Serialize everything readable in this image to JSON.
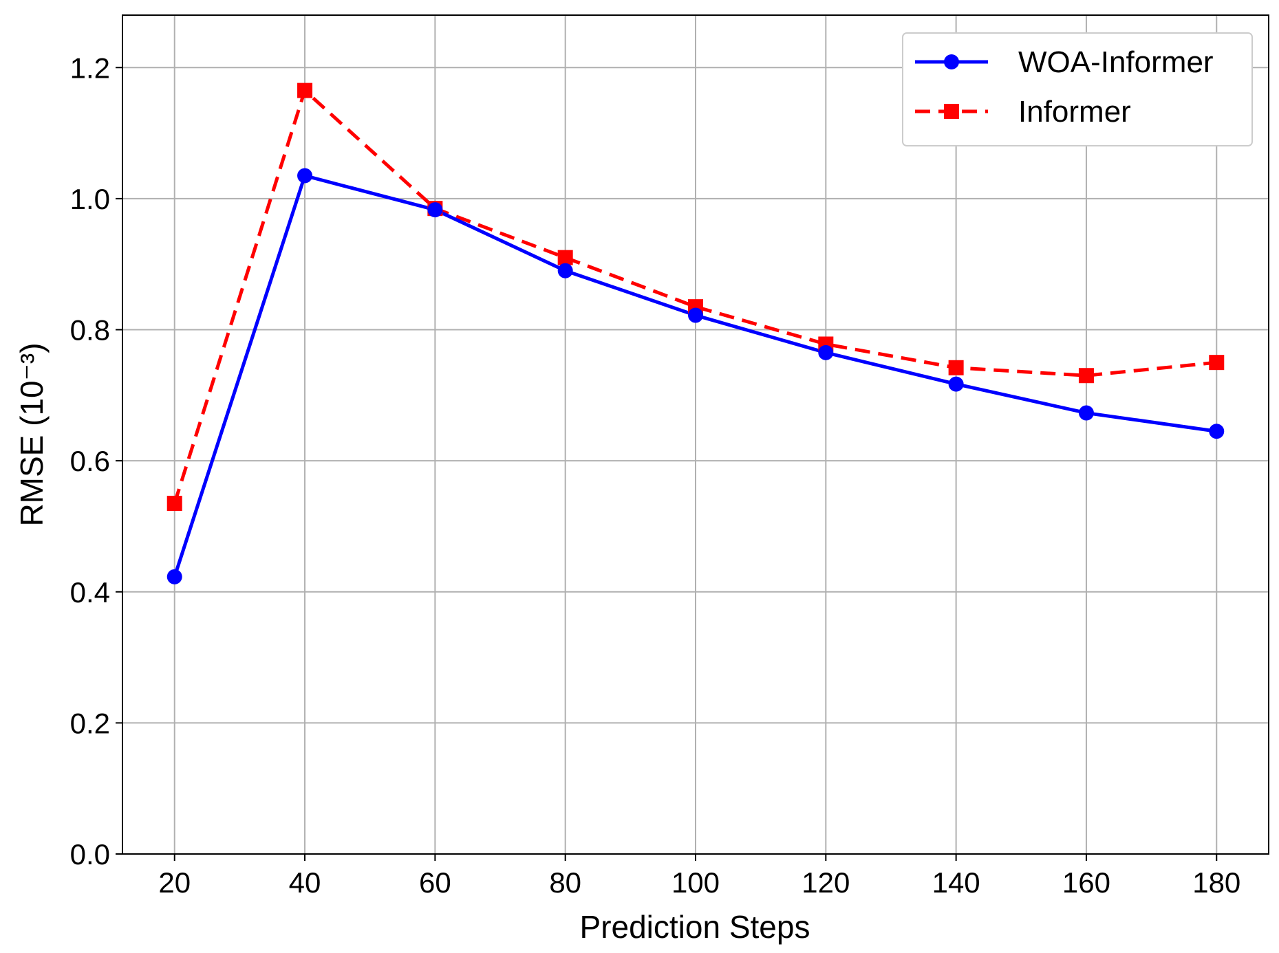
{
  "chart_data": {
    "type": "line",
    "title": "",
    "xlabel": "Prediction Steps",
    "ylabel": "RMSE (10⁻³)",
    "x": [
      20,
      40,
      60,
      80,
      100,
      120,
      140,
      160,
      180
    ],
    "x_ticks": [
      "20",
      "40",
      "60",
      "80",
      "100",
      "120",
      "140",
      "160",
      "180"
    ],
    "y_ticks": [
      "0.0",
      "0.2",
      "0.4",
      "0.6",
      "0.8",
      "1.0",
      "1.2"
    ],
    "xlim": [
      12,
      188
    ],
    "ylim": [
      0,
      1.28
    ],
    "grid": true,
    "legend_position": "top-right",
    "series": [
      {
        "name": "WOA-Informer",
        "color": "#0000ff",
        "line_style": "solid",
        "marker": "circle",
        "values": [
          0.423,
          1.035,
          0.983,
          0.89,
          0.822,
          0.765,
          0.717,
          0.673,
          0.645
        ]
      },
      {
        "name": "Informer",
        "color": "#ff0000",
        "line_style": "dashed",
        "marker": "square",
        "values": [
          0.535,
          1.165,
          0.985,
          0.91,
          0.835,
          0.778,
          0.742,
          0.73,
          0.75
        ]
      }
    ]
  }
}
